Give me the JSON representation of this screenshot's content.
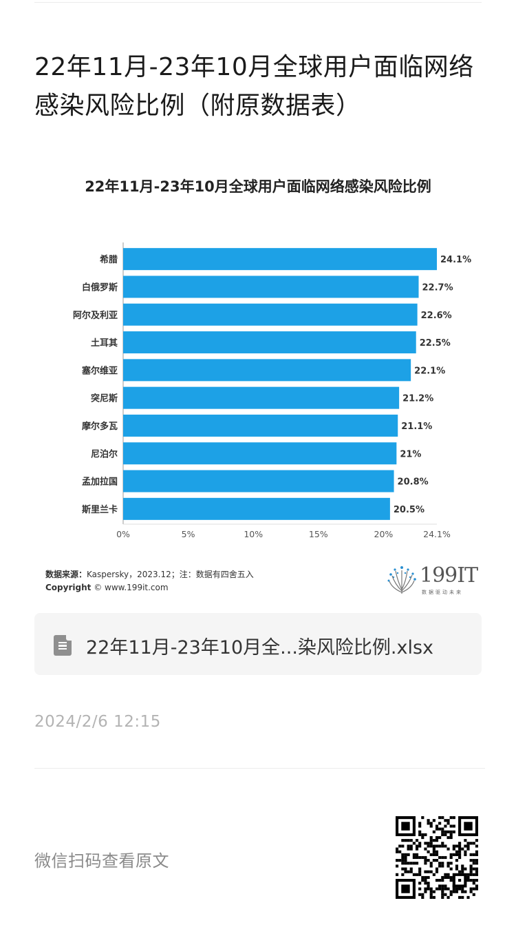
{
  "article": {
    "title": "22年11月-23年10月全球用户面临网络感染风险比例（附原数据表）"
  },
  "chart_data": {
    "type": "bar",
    "orientation": "horizontal",
    "title": "22年11月-23年10月全球用户面临网络感染风险比例",
    "categories": [
      "希腊",
      "白俄罗斯",
      "阿尔及利亚",
      "土耳其",
      "塞尔维亚",
      "突尼斯",
      "摩尔多瓦",
      "尼泊尔",
      "孟加拉国",
      "斯里兰卡"
    ],
    "values": [
      24.1,
      22.7,
      22.6,
      22.5,
      22.1,
      21.2,
      21.1,
      21,
      20.8,
      20.5
    ],
    "value_labels": [
      "24.1%",
      "22.7%",
      "22.6%",
      "22.5%",
      "22.1%",
      "21.2%",
      "21.1%",
      "21%",
      "20.8%",
      "20.5%"
    ],
    "x_ticks": [
      0,
      5,
      10,
      15,
      20,
      24.1
    ],
    "x_tick_labels": [
      "0%",
      "5%",
      "10%",
      "15%",
      "20%",
      "24.1%"
    ],
    "xlim": [
      0,
      24.1
    ],
    "xlabel": "",
    "ylabel": "",
    "bar_color": "#1da1e6",
    "grid": false,
    "legend": "none"
  },
  "chart_footer": {
    "source_label": "数据来源：",
    "source_text": "Kaspersky，2023.12；注：数据有四舍五入",
    "copyright_label": "Copyright",
    "copyright_text": "© www.199it.com"
  },
  "logo": {
    "text": "199IT",
    "tagline": "数据驱动未来",
    "icon": "dandelion-logo-icon"
  },
  "file": {
    "name": "22年11月-23年10月全...染风险比例.xlsx",
    "icon": "spreadsheet-file-icon"
  },
  "timestamp": "2024/2/6 12:15",
  "qr": {
    "hint": "微信扫码查看原文",
    "icon": "qr-code-icon"
  }
}
